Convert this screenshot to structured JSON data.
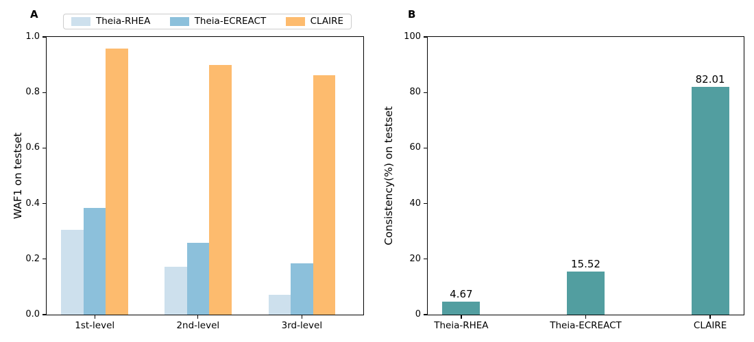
{
  "chart_data": [
    {
      "type": "bar",
      "panel": "A",
      "title": "",
      "categories": [
        "1st-level",
        "2nd-level",
        "3rd-level"
      ],
      "series": [
        {
          "name": "Theia-RHEA",
          "color": "#cde0ed",
          "values": [
            0.305,
            0.172,
            0.072
          ]
        },
        {
          "name": "Theia-ECREACT",
          "color": "#8cc0db",
          "values": [
            0.385,
            0.258,
            0.185
          ]
        },
        {
          "name": "CLAIRE",
          "color": "#fdbb6e",
          "values": [
            0.958,
            0.898,
            0.861
          ]
        }
      ],
      "xlabel": "",
      "ylabel": "WAF1 on testset",
      "ylim": [
        0.0,
        1.0
      ],
      "yticks": [
        0.0,
        0.2,
        0.4,
        0.6,
        0.8,
        1.0
      ],
      "ytick_labels": [
        "0.0",
        "0.2",
        "0.4",
        "0.6",
        "0.8",
        "1.0"
      ],
      "grid": false,
      "legend": {
        "position": "top",
        "entries": [
          "Theia-RHEA",
          "Theia-ECREACT",
          "CLAIRE"
        ]
      }
    },
    {
      "type": "bar",
      "panel": "B",
      "title": "",
      "categories": [
        "Theia-RHEA",
        "Theia-ECREACT",
        "CLAIRE"
      ],
      "series": [
        {
          "name": "Consistency(%)",
          "color": "#529ea0",
          "values": [
            4.67,
            15.52,
            82.01
          ]
        }
      ],
      "bar_labels": [
        "4.67",
        "15.52",
        "82.01"
      ],
      "xlabel": "",
      "ylabel": "Consistency(%) on testset",
      "ylim": [
        0,
        100
      ],
      "yticks": [
        0,
        20,
        40,
        60,
        80,
        100
      ],
      "ytick_labels": [
        "0",
        "20",
        "40",
        "60",
        "80",
        "100"
      ],
      "grid": false,
      "legend": {
        "position": "none",
        "entries": []
      }
    }
  ]
}
